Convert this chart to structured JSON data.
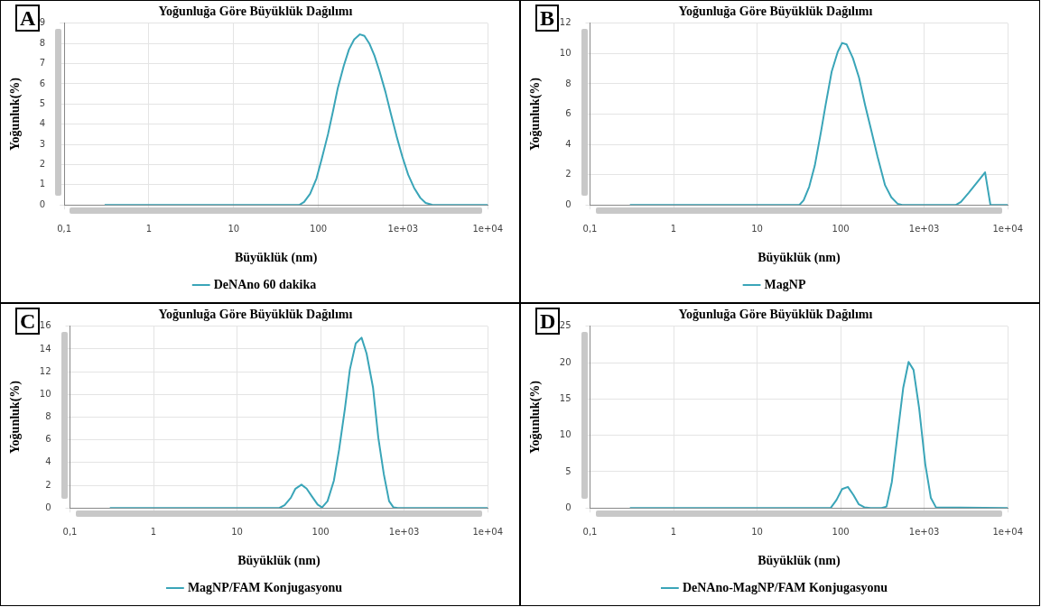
{
  "chart_data": [
    {
      "type": "line",
      "title": "Yoğunluğa Göre Büyüklük Dağılımı",
      "xlabel": "Büyüklük (nm)",
      "ylabel": "Yoğunluk(%)",
      "annotations": [
        "A"
      ],
      "log": "x",
      "grid": true,
      "legend": "bottom",
      "marker": "none",
      "line_style": "solid",
      "xlim": [
        0.1,
        10000
      ],
      "xticks": [
        {
          "value": 0.1,
          "label": "0,1"
        },
        1,
        10,
        100,
        {
          "value": 1000,
          "label": "1e+03"
        },
        {
          "value": 10000,
          "label": "1e+04"
        }
      ],
      "ylim": [
        0,
        9
      ],
      "yticks": [
        0,
        1,
        2,
        3,
        4,
        5,
        6,
        7,
        8,
        9
      ],
      "x": [
        0.3,
        60,
        68,
        80,
        95,
        110,
        130,
        150,
        170,
        200,
        230,
        265,
        310,
        350,
        400,
        460,
        530,
        620,
        720,
        840,
        980,
        1150,
        1350,
        1600,
        1850,
        2200,
        2500,
        10000
      ],
      "series": [
        {
          "name": "DeNAno 60 dakika",
          "color": "#3aa5b8",
          "values": [
            0,
            0,
            0.15,
            0.55,
            1.3,
            2.3,
            3.5,
            4.7,
            5.8,
            6.9,
            7.7,
            8.2,
            8.45,
            8.38,
            8.0,
            7.4,
            6.6,
            5.6,
            4.5,
            3.4,
            2.4,
            1.5,
            0.85,
            0.35,
            0.1,
            0.01,
            0,
            0
          ]
        }
      ]
    },
    {
      "type": "line",
      "title": "Yoğunluğa Göre Büyüklük Dağılımı",
      "xlabel": "Büyüklük (nm)",
      "ylabel": "Yoğunluk(%)",
      "annotations": [
        "B"
      ],
      "log": "x",
      "grid": true,
      "legend": "bottom",
      "marker": "none",
      "line_style": "solid",
      "xlim": [
        0.1,
        10000
      ],
      "xticks": [
        {
          "value": 0.1,
          "label": "0,1"
        },
        1,
        10,
        100,
        {
          "value": 1000,
          "label": "1e+03"
        },
        {
          "value": 10000,
          "label": "1e+04"
        }
      ],
      "ylim": [
        0,
        12
      ],
      "yticks": [
        0,
        2,
        4,
        6,
        8,
        10,
        12
      ],
      "x": [
        0.3,
        32,
        36,
        42,
        49,
        58,
        66,
        78,
        92,
        104,
        118,
        140,
        166,
        196,
        233,
        276,
        340,
        404,
        480,
        545,
        2400,
        2750,
        3400,
        4300,
        5350,
        6200,
        10000
      ],
      "series": [
        {
          "name": "MagNP",
          "color": "#3aa5b8",
          "values": [
            0,
            0,
            0.3,
            1.2,
            2.6,
            4.8,
            6.6,
            8.8,
            10.1,
            10.7,
            10.6,
            9.7,
            8.4,
            6.6,
            4.9,
            3.2,
            1.3,
            0.5,
            0.08,
            0,
            0,
            0.2,
            0.8,
            1.5,
            2.15,
            0,
            0
          ]
        }
      ]
    },
    {
      "type": "line",
      "title": "Yoğunluğa Göre Büyüklük Dağılımı",
      "xlabel": "Büyüklük (nm)",
      "ylabel": "Yoğunluk(%)",
      "annotations": [
        "C"
      ],
      "log": "x",
      "grid": true,
      "legend": "bottom",
      "marker": "none",
      "line_style": "solid",
      "xlim": [
        0.1,
        10000
      ],
      "xticks": [
        {
          "value": 0.1,
          "label": "0,1"
        },
        1,
        10,
        100,
        {
          "value": 1000,
          "label": "1e+03"
        },
        {
          "value": 10000,
          "label": "1e+04"
        }
      ],
      "ylim": [
        0,
        16
      ],
      "yticks": [
        0,
        2,
        4,
        6,
        8,
        10,
        12,
        14,
        16
      ],
      "x": [
        0.3,
        32,
        37,
        44,
        50,
        59,
        68,
        79,
        92,
        104,
        121,
        144,
        166,
        195,
        224,
        263,
        309,
        355,
        424,
        490,
        570,
        660,
        745,
        840,
        10000
      ],
      "series": [
        {
          "name": "MagNP/FAM Konjugasyonu",
          "color": "#3aa5b8",
          "values": [
            0,
            0,
            0.25,
            0.9,
            1.7,
            2.05,
            1.7,
            1.0,
            0.3,
            0.05,
            0.6,
            2.4,
            5.1,
            8.7,
            12.2,
            14.5,
            15.0,
            13.6,
            10.6,
            6.2,
            3.0,
            0.6,
            0.05,
            0,
            0
          ]
        }
      ]
    },
    {
      "type": "line",
      "title": "Yoğunluğa Göre Büyüklük Dağılımı",
      "xlabel": "Büyüklük (nm)",
      "ylabel": "Yoğunluk(%)",
      "annotations": [
        "D"
      ],
      "log": "x",
      "grid": true,
      "legend": "bottom",
      "marker": "none",
      "line_style": "solid",
      "xlim": [
        0.1,
        10000
      ],
      "xticks": [
        {
          "value": 0.1,
          "label": "0,1"
        },
        1,
        10,
        100,
        {
          "value": 1000,
          "label": "1e+03"
        },
        {
          "value": 10000,
          "label": "1e+04"
        }
      ],
      "ylim": [
        0,
        25
      ],
      "yticks": [
        0,
        5,
        10,
        15,
        20,
        25
      ],
      "x": [
        0.3,
        76,
        89,
        104,
        122,
        142,
        165,
        192,
        227,
        309,
        354,
        410,
        478,
        560,
        650,
        745,
        870,
        1030,
        1200,
        1380,
        10000
      ],
      "series": [
        {
          "name": "DeNAno-MagNP/FAM Konjugasyonu",
          "color": "#3aa5b8",
          "values": [
            0,
            0,
            1.1,
            2.6,
            2.9,
            1.8,
            0.5,
            0.1,
            0,
            0,
            0.2,
            3.6,
            10.0,
            16.5,
            20.1,
            19.0,
            13.7,
            6.0,
            1.4,
            0.1,
            0
          ]
        }
      ]
    }
  ]
}
